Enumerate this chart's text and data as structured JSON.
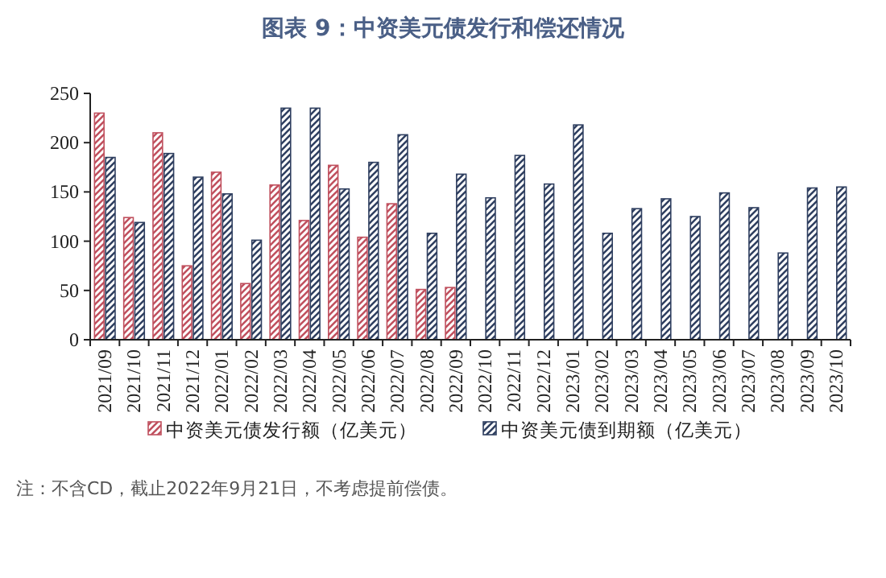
{
  "chart_data": {
    "type": "bar",
    "title": "图表 9：中资美元债发行和偿还情况",
    "categories": [
      "2021/09",
      "2021/10",
      "2021/11",
      "2021/12",
      "2022/01",
      "2022/02",
      "2022/03",
      "2022/04",
      "2022/05",
      "2022/06",
      "2022/07",
      "2022/08",
      "2022/09",
      "2022/10",
      "2022/11",
      "2022/12",
      "2023/01",
      "2023/02",
      "2023/03",
      "2023/04",
      "2023/05",
      "2023/06",
      "2023/07",
      "2023/08",
      "2023/09",
      "2023/10"
    ],
    "series": [
      {
        "name": "中资美元债发行额（亿美元）",
        "color": "#c0505e",
        "values": [
          230,
          124,
          210,
          75,
          170,
          57,
          157,
          121,
          177,
          104,
          138,
          51,
          53,
          null,
          null,
          null,
          null,
          null,
          null,
          null,
          null,
          null,
          null,
          null,
          null,
          null
        ]
      },
      {
        "name": "中资美元债到期额（亿美元）",
        "color": "#2f3f60",
        "values": [
          185,
          119,
          189,
          165,
          148,
          101,
          235,
          235,
          153,
          180,
          208,
          108,
          168,
          144,
          187,
          158,
          218,
          108,
          133,
          143,
          125,
          149,
          134,
          88,
          154,
          155
        ]
      }
    ],
    "ylim": [
      0,
      250
    ],
    "yticks": [
      0,
      50,
      100,
      150,
      200,
      250
    ],
    "grid": false,
    "legend": "bottom",
    "annotations": [
      "注：不含CD，截止2022年9月21日，不考虑提前偿债。"
    ]
  }
}
